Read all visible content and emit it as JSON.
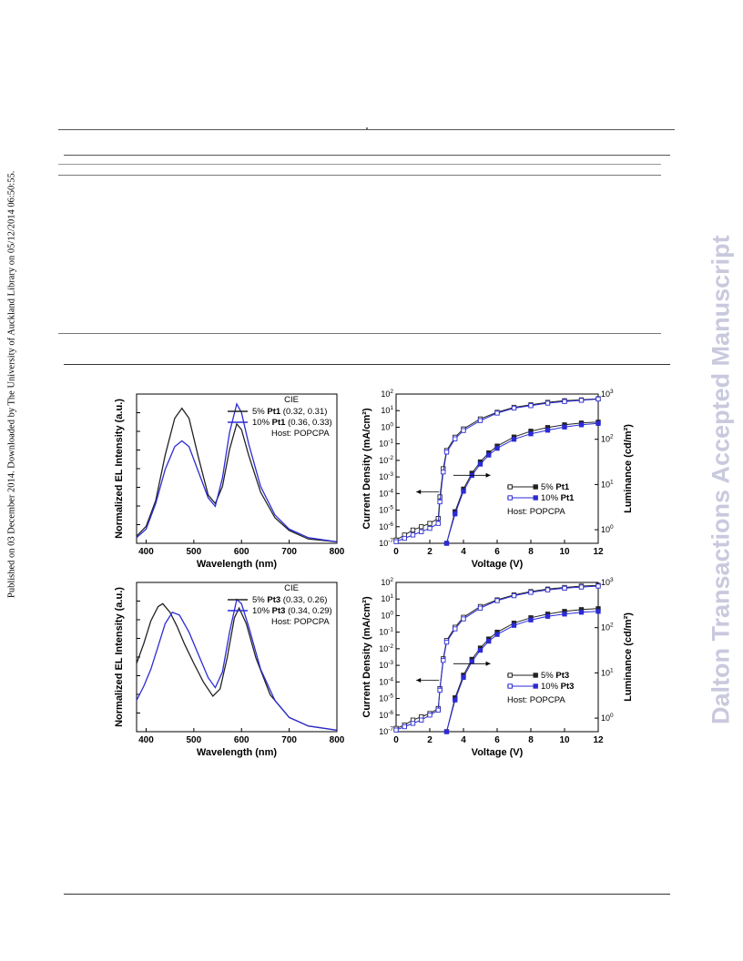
{
  "side_note": "Published on 03 December 2014. Downloaded by The University of Auckland Library on 05/12/2014 06:50:55.",
  "watermark": "Dalton Transactions Accepted Manuscript",
  "chart_data": [
    {
      "type": "line",
      "id": "el-pt1",
      "xlabel": "Wavelength (nm)",
      "ylabel": "Normalized EL Intensity (a.u.)",
      "xlim": [
        380,
        800
      ],
      "xticks": [
        "400",
        "500",
        "600",
        "700",
        "800"
      ],
      "legend_title": "CIE",
      "legend_note": "Host: POPCPA",
      "legend": [
        {
          "prefix": "5%",
          "bold": "Pt1",
          "suffix": "(0.32, 0.31)",
          "color": "#222222"
        },
        {
          "prefix": "10%",
          "bold": "Pt1",
          "suffix": "(0.36, 0.33)",
          "color": "#2b2bd6"
        }
      ],
      "ylim": [
        0,
        1.05
      ],
      "series": [
        {
          "x": [
            380,
            400,
            420,
            440,
            460,
            475,
            490,
            510,
            530,
            545,
            560,
            575,
            590,
            600,
            615,
            640,
            670,
            700,
            740,
            800
          ],
          "y": [
            0.05,
            0.12,
            0.3,
            0.62,
            0.88,
            0.95,
            0.88,
            0.6,
            0.34,
            0.28,
            0.4,
            0.66,
            0.84,
            0.8,
            0.62,
            0.36,
            0.18,
            0.09,
            0.03,
            0.01
          ]
        },
        {
          "x": [
            380,
            400,
            420,
            440,
            460,
            475,
            490,
            510,
            530,
            545,
            560,
            575,
            590,
            600,
            615,
            640,
            670,
            700,
            740,
            800
          ],
          "y": [
            0.04,
            0.1,
            0.28,
            0.52,
            0.68,
            0.72,
            0.68,
            0.5,
            0.32,
            0.26,
            0.46,
            0.78,
            0.98,
            0.92,
            0.7,
            0.4,
            0.2,
            0.1,
            0.04,
            0.01
          ]
        }
      ]
    },
    {
      "type": "line",
      "id": "jvl-pt1",
      "xlabel": "Voltage (V)",
      "ylabel": "Current Density (mA/cm²)",
      "y2label": "Luminance (cd/m²)",
      "xlim": [
        0,
        12
      ],
      "xticks": [
        "0",
        "2",
        "4",
        "6",
        "8",
        "10",
        "12"
      ],
      "ylim_log": [
        -7,
        2
      ],
      "y2lim_log": [
        -0.3,
        3
      ],
      "legend": [
        {
          "label": "5%",
          "bold": "Pt1",
          "color": "#222222"
        },
        {
          "label": "10%",
          "bold": "Pt1",
          "color": "#2b2bd6"
        }
      ],
      "legend_note": "Host: POPCPA",
      "series": [
        {
          "name": "J 5%",
          "axis": "left",
          "marker": "open",
          "color": "#222222",
          "x": [
            0,
            0.5,
            1,
            1.5,
            2,
            2.5,
            2.6,
            2.8,
            3,
            3.5,
            4,
            5,
            6,
            7,
            8,
            9,
            10,
            11,
            12
          ],
          "y": [
            -6.8,
            -6.5,
            -6.2,
            -6.0,
            -5.8,
            -5.5,
            -4.2,
            -2.5,
            -1.4,
            -0.6,
            -0.1,
            0.5,
            0.9,
            1.2,
            1.35,
            1.5,
            1.6,
            1.65,
            1.72
          ]
        },
        {
          "name": "J 10%",
          "axis": "left",
          "marker": "open",
          "color": "#2b2bd6",
          "x": [
            0,
            0.5,
            1,
            1.5,
            2,
            2.5,
            2.6,
            2.8,
            3,
            3.5,
            4,
            5,
            6,
            7,
            8,
            9,
            10,
            11,
            12
          ],
          "y": [
            -6.9,
            -6.7,
            -6.5,
            -6.3,
            -6.1,
            -5.8,
            -4.5,
            -2.7,
            -1.5,
            -0.7,
            -0.2,
            0.4,
            0.85,
            1.15,
            1.3,
            1.45,
            1.55,
            1.62,
            1.7
          ]
        },
        {
          "name": "L 5%",
          "axis": "right",
          "marker": "filled",
          "color": "#222222",
          "x": [
            3,
            3.5,
            4,
            4.5,
            5,
            5.5,
            6,
            7,
            8,
            9,
            10,
            11,
            12
          ],
          "y": [
            -0.3,
            0.4,
            0.9,
            1.25,
            1.5,
            1.7,
            1.85,
            2.05,
            2.18,
            2.26,
            2.32,
            2.36,
            2.38
          ]
        },
        {
          "name": "L 10%",
          "axis": "right",
          "marker": "filled",
          "color": "#2b2bd6",
          "x": [
            3,
            3.5,
            4,
            4.5,
            5,
            5.5,
            6,
            7,
            8,
            9,
            10,
            11,
            12
          ],
          "y": [
            -0.3,
            0.35,
            0.85,
            1.2,
            1.45,
            1.65,
            1.8,
            2.0,
            2.12,
            2.2,
            2.27,
            2.32,
            2.35
          ]
        }
      ]
    },
    {
      "type": "line",
      "id": "el-pt3",
      "xlabel": "Wavelength (nm)",
      "ylabel": "Normalized EL Intensity (a.u.)",
      "xlim": [
        380,
        800
      ],
      "xticks": [
        "400",
        "500",
        "600",
        "700",
        "800"
      ],
      "legend_title": "CIE",
      "legend_note": "Host: POPCPA",
      "legend": [
        {
          "prefix": "5%",
          "bold": "Pt3",
          "suffix": "(0.33, 0.26)",
          "color": "#222222"
        },
        {
          "prefix": "10%",
          "bold": "Pt3",
          "suffix": "(0.34, 0.29)",
          "color": "#2b2bd6"
        }
      ],
      "ylim": [
        0,
        1.05
      ],
      "series": [
        {
          "x": [
            380,
            395,
            410,
            425,
            435,
            450,
            465,
            480,
            500,
            520,
            540,
            555,
            570,
            585,
            595,
            610,
            630,
            660,
            700,
            740,
            800
          ],
          "y": [
            0.48,
            0.62,
            0.78,
            0.88,
            0.9,
            0.84,
            0.74,
            0.62,
            0.48,
            0.35,
            0.25,
            0.3,
            0.52,
            0.8,
            0.87,
            0.76,
            0.52,
            0.26,
            0.1,
            0.04,
            0.01
          ]
        },
        {
          "x": [
            380,
            395,
            410,
            425,
            440,
            455,
            470,
            490,
            510,
            530,
            545,
            560,
            575,
            590,
            600,
            615,
            640,
            670,
            700,
            740,
            800
          ],
          "y": [
            0.22,
            0.32,
            0.44,
            0.6,
            0.76,
            0.84,
            0.82,
            0.7,
            0.54,
            0.38,
            0.31,
            0.42,
            0.7,
            0.93,
            0.9,
            0.74,
            0.44,
            0.22,
            0.1,
            0.04,
            0.01
          ]
        }
      ]
    },
    {
      "type": "line",
      "id": "jvl-pt3",
      "xlabel": "Voltage (V)",
      "ylabel": "Current Density (mA/cm²)",
      "y2label": "Luminance (cd/m²)",
      "xlim": [
        0,
        12
      ],
      "xticks": [
        "0",
        "2",
        "4",
        "6",
        "8",
        "10",
        "12"
      ],
      "ylim_log": [
        -7,
        2
      ],
      "y2lim_log": [
        -0.3,
        3
      ],
      "legend": [
        {
          "label": "5%",
          "bold": "Pt3",
          "color": "#222222"
        },
        {
          "label": "10%",
          "bold": "Pt3",
          "color": "#2b2bd6"
        }
      ],
      "legend_note": "Host: POPCPA",
      "series": [
        {
          "name": "J 5%",
          "axis": "left",
          "marker": "open",
          "color": "#222222",
          "x": [
            0,
            0.5,
            1,
            1.5,
            2,
            2.5,
            2.6,
            2.8,
            3,
            3.5,
            4,
            5,
            6,
            7,
            8,
            9,
            10,
            11,
            12
          ],
          "y": [
            -6.8,
            -6.6,
            -6.3,
            -6.1,
            -5.9,
            -5.6,
            -4.4,
            -2.6,
            -1.5,
            -0.7,
            -0.1,
            0.55,
            0.95,
            1.25,
            1.45,
            1.6,
            1.7,
            1.78,
            1.82
          ]
        },
        {
          "name": "J 10%",
          "axis": "left",
          "marker": "open",
          "color": "#2b2bd6",
          "x": [
            0,
            0.5,
            1,
            1.5,
            2,
            2.5,
            2.6,
            2.8,
            3,
            3.5,
            4,
            5,
            6,
            7,
            8,
            9,
            10,
            11,
            12
          ],
          "y": [
            -6.9,
            -6.7,
            -6.5,
            -6.3,
            -6.0,
            -5.7,
            -4.5,
            -2.7,
            -1.6,
            -0.8,
            -0.2,
            0.45,
            0.9,
            1.2,
            1.4,
            1.55,
            1.65,
            1.72,
            1.78
          ]
        },
        {
          "name": "L 5%",
          "axis": "right",
          "marker": "filled",
          "color": "#222222",
          "x": [
            3,
            3.5,
            4,
            4.5,
            5,
            5.5,
            6,
            7,
            8,
            9,
            10,
            11,
            12
          ],
          "y": [
            -0.3,
            0.45,
            0.95,
            1.3,
            1.55,
            1.75,
            1.9,
            2.1,
            2.22,
            2.3,
            2.36,
            2.4,
            2.42
          ]
        },
        {
          "name": "L 10%",
          "axis": "right",
          "marker": "filled",
          "color": "#2b2bd6",
          "x": [
            3,
            3.5,
            4,
            4.5,
            5,
            5.5,
            6,
            7,
            8,
            9,
            10,
            11,
            12
          ],
          "y": [
            -0.3,
            0.4,
            0.9,
            1.25,
            1.5,
            1.7,
            1.85,
            2.05,
            2.17,
            2.25,
            2.3,
            2.34,
            2.36
          ]
        }
      ]
    }
  ]
}
